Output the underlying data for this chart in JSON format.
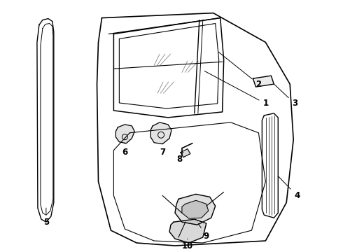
{
  "background_color": "#ffffff",
  "line_color": "#000000",
  "figsize": [
    4.9,
    3.6
  ],
  "dpi": 100,
  "label_fontsize": 8.5
}
